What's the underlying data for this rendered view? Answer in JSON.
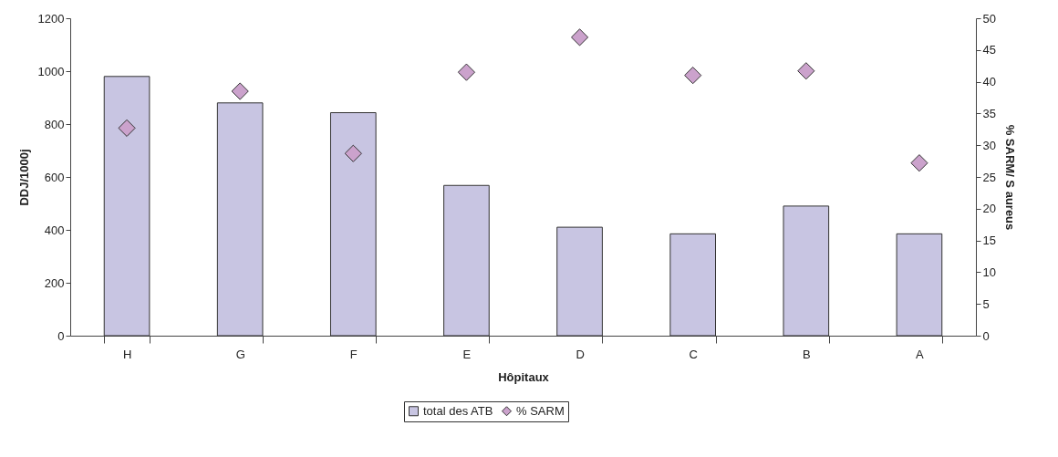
{
  "chart_data": {
    "type": "bar",
    "xlabel": "Hôpitaux",
    "ylabel": "DDJ/1000j",
    "y2label": "% SARM/ S aureus",
    "categories": [
      "H",
      "G",
      "F",
      "E",
      "D",
      "C",
      "B",
      "A"
    ],
    "series": [
      {
        "name": "total des ATB",
        "color": "#c8c5e2",
        "values": [
          980,
          880,
          843,
          568,
          410,
          385,
          490,
          385
        ]
      },
      {
        "name": "% SARM",
        "type": "scatter",
        "axis": "y2",
        "color": "#cba2cc",
        "marker": "diamond",
        "values": [
          32.7,
          38.5,
          28.7,
          41.5,
          47,
          41,
          41.7,
          27.2
        ]
      }
    ],
    "ylim": [
      0,
      1200
    ],
    "yticks": [
      0,
      200,
      400,
      600,
      800,
      1000,
      1200
    ],
    "y2lim": [
      0,
      50
    ],
    "y2ticks": [
      0,
      5,
      10,
      15,
      20,
      25,
      30,
      35,
      40,
      45,
      50
    ],
    "grid": false,
    "legend": "bottom"
  }
}
